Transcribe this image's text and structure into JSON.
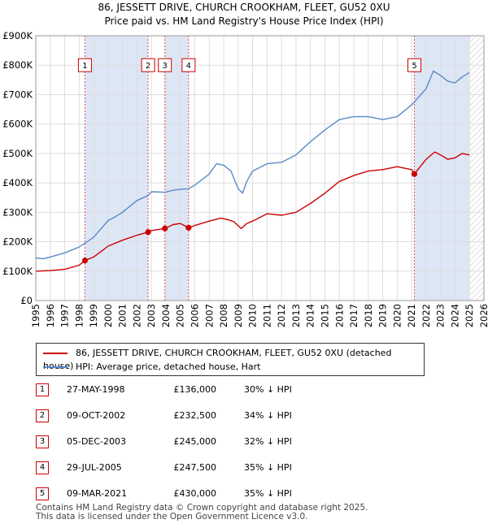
{
  "title_line1": "86, JESSETT DRIVE, CHURCH CROOKHAM, FLEET, GU52 0XU",
  "title_line2": "Price paid vs. HM Land Registry's House Price Index (HPI)",
  "colors": {
    "price_line": "#cc0000",
    "hpi_line": "#5a8ac6",
    "shade": "#dde6f5",
    "hatch": "#c8c8c8",
    "marker_dash": "#e05060"
  },
  "chart_data": {
    "type": "line",
    "xlim": [
      1995,
      2026
    ],
    "ylim": [
      0,
      900000
    ],
    "y_ticks": [
      {
        "value": 0,
        "label": "£0"
      },
      {
        "value": 100000,
        "label": "£100K"
      },
      {
        "value": 200000,
        "label": "£200K"
      },
      {
        "value": 300000,
        "label": "£300K"
      },
      {
        "value": 400000,
        "label": "£400K"
      },
      {
        "value": 500000,
        "label": "£500K"
      },
      {
        "value": 600000,
        "label": "£600K"
      },
      {
        "value": 700000,
        "label": "£700K"
      },
      {
        "value": 800000,
        "label": "£800K"
      },
      {
        "value": 900000,
        "label": "£900K"
      }
    ],
    "x_ticks": [
      "1995",
      "1996",
      "1997",
      "1998",
      "1999",
      "2000",
      "2001",
      "2002",
      "2003",
      "2004",
      "2005",
      "2006",
      "2007",
      "2008",
      "2009",
      "2010",
      "2011",
      "2012",
      "2013",
      "2014",
      "2015",
      "2016",
      "2017",
      "2018",
      "2019",
      "2020",
      "2021",
      "2022",
      "2023",
      "2024",
      "2025",
      "2026"
    ],
    "hatch_from": 2025.0,
    "shaded_ranges": [
      [
        1998.4,
        2002.77
      ],
      [
        2003.93,
        2005.57
      ],
      [
        2021.19,
        2025.0
      ]
    ],
    "series": [
      {
        "name": "86, JESSETT DRIVE, CHURCH CROOKHAM, FLEET, GU52 0XU (detached house)",
        "x": [
          1995.0,
          1996.0,
          1997.0,
          1998.0,
          1998.4,
          1999.0,
          2000.0,
          2001.0,
          2002.0,
          2002.77,
          2003.0,
          2003.93,
          2004.5,
          2005.0,
          2005.57,
          2006.0,
          2007.0,
          2007.8,
          2008.3,
          2008.7,
          2009.2,
          2009.6,
          2010.0,
          2011.0,
          2012.0,
          2013.0,
          2014.0,
          2015.0,
          2016.0,
          2017.0,
          2018.0,
          2019.0,
          2020.0,
          2021.0,
          2021.19,
          2022.0,
          2022.6,
          2023.0,
          2023.5,
          2024.0,
          2024.5,
          2025.0
        ],
        "y": [
          100000,
          102000,
          106000,
          120000,
          136000,
          148000,
          185000,
          205000,
          222000,
          232500,
          238000,
          245000,
          258000,
          262000,
          247500,
          255000,
          270000,
          280000,
          275000,
          268000,
          245000,
          262000,
          270000,
          295000,
          290000,
          300000,
          330000,
          365000,
          405000,
          425000,
          440000,
          445000,
          455000,
          445000,
          430000,
          480000,
          505000,
          495000,
          480000,
          485000,
          500000,
          495000
        ]
      },
      {
        "name": "HPI: Average price, detached house, Hart",
        "x": [
          1995.0,
          1995.5,
          1996.0,
          1997.0,
          1998.0,
          1998.4,
          1999.0,
          2000.0,
          2000.5,
          2001.0,
          2002.0,
          2002.77,
          2003.0,
          2003.93,
          2004.5,
          2005.0,
          2005.57,
          2006.0,
          2007.0,
          2007.5,
          2008.0,
          2008.5,
          2009.0,
          2009.3,
          2009.6,
          2010.0,
          2011.0,
          2012.0,
          2013.0,
          2014.0,
          2015.0,
          2016.0,
          2017.0,
          2018.0,
          2019.0,
          2020.0,
          2021.0,
          2021.19,
          2022.0,
          2022.5,
          2023.0,
          2023.5,
          2024.0,
          2024.5,
          2025.0
        ],
        "y": [
          145000,
          142000,
          148000,
          162000,
          182000,
          195000,
          215000,
          272000,
          285000,
          300000,
          340000,
          357000,
          370000,
          368000,
          375000,
          378000,
          380000,
          392000,
          430000,
          465000,
          460000,
          440000,
          380000,
          365000,
          405000,
          440000,
          465000,
          470000,
          495000,
          540000,
          580000,
          615000,
          625000,
          625000,
          615000,
          625000,
          665000,
          675000,
          720000,
          780000,
          765000,
          745000,
          740000,
          760000,
          775000
        ]
      }
    ],
    "sales": [
      {
        "id": "1",
        "date": "27-MAY-1998",
        "x": 1998.4,
        "price": 136000,
        "price_label": "£136,000",
        "hpi_diff": "30% ↓ HPI"
      },
      {
        "id": "2",
        "date": "09-OCT-2002",
        "x": 2002.77,
        "price": 232500,
        "price_label": "£232,500",
        "hpi_diff": "34% ↓ HPI"
      },
      {
        "id": "3",
        "date": "05-DEC-2003",
        "x": 2003.93,
        "price": 245000,
        "price_label": "£245,000",
        "hpi_diff": "32% ↓ HPI"
      },
      {
        "id": "4",
        "date": "29-JUL-2005",
        "x": 2005.57,
        "price": 247500,
        "price_label": "£247,500",
        "hpi_diff": "35% ↓ HPI"
      },
      {
        "id": "5",
        "date": "09-MAR-2021",
        "x": 2021.19,
        "price": 430000,
        "price_label": "£430,000",
        "hpi_diff": "35% ↓ HPI"
      }
    ],
    "marker_label_value": 800000
  },
  "legend": {
    "price_label": "86, JESSETT DRIVE, CHURCH CROOKHAM, FLEET, GU52 0XU (detached house)",
    "hpi_label": "HPI: Average price, detached house, Hart"
  },
  "footer": {
    "line1": "Contains HM Land Registry data © Crown copyright and database right 2025.",
    "line2": "This data is licensed under the Open Government Licence v3.0."
  }
}
